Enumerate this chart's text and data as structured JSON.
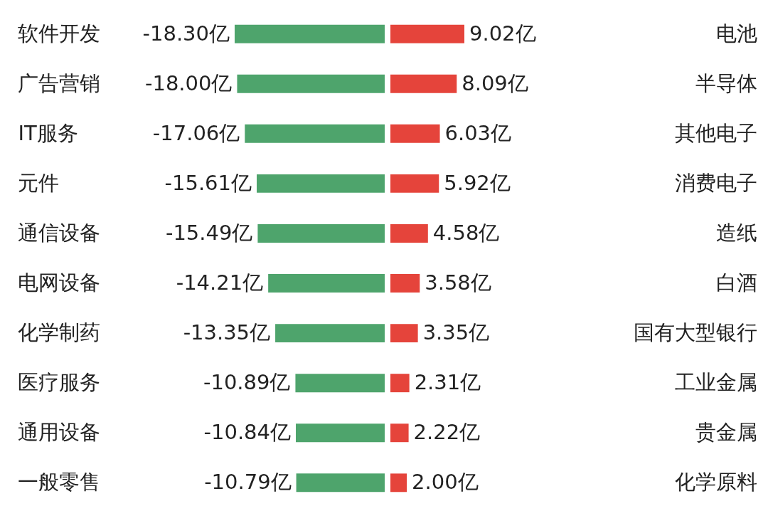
{
  "chart_data": [
    {
      "type": "bar",
      "orientation": "horizontal",
      "categories": [
        "软件开发",
        "广告营销",
        "IT服务",
        "元件",
        "通信设备",
        "电网设备",
        "化学制药",
        "医疗服务",
        "通用设备",
        "一般零售"
      ],
      "values": [
        -18.3,
        -18.0,
        -17.06,
        -15.61,
        -15.49,
        -14.21,
        -13.35,
        -10.89,
        -10.84,
        -10.79
      ],
      "color": "#4ea46c",
      "value_labels": [
        "-18.30亿",
        "-18.00亿",
        "-17.06亿",
        "-15.61亿",
        "-15.49亿",
        "-14.21亿",
        "-13.35亿",
        "-10.89亿",
        "-10.84亿",
        "-10.79亿"
      ],
      "xlim": [
        -18.3,
        0
      ],
      "tick_labels": "y"
    },
    {
      "type": "bar",
      "orientation": "horizontal",
      "categories": [
        "电池",
        "半导体",
        "其他电子",
        "消费电子",
        "造纸",
        "白酒",
        "国有大型银行",
        "工业金属",
        "贵金属",
        "化学原料"
      ],
      "values": [
        9.02,
        8.09,
        6.03,
        5.92,
        4.58,
        3.58,
        3.35,
        2.31,
        2.22,
        2.0
      ],
      "color": "#e5443b",
      "value_labels": [
        "9.02亿",
        "8.09亿",
        "6.03亿",
        "5.92亿",
        "4.58亿",
        "3.58亿",
        "3.35亿",
        "2.31亿",
        "2.22亿",
        "2.00亿"
      ],
      "xlim": [
        0,
        9.02
      ],
      "tick_labels": "y"
    }
  ]
}
